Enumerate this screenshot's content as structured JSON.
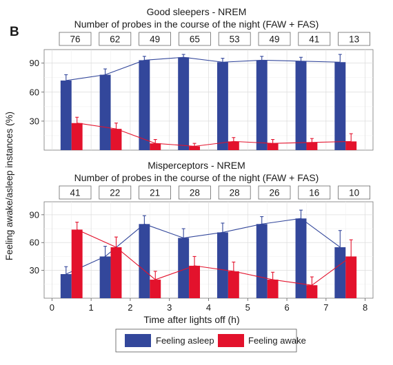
{
  "panel_label": "B",
  "y_axis_label": "Feeling awake/asleep instances (%)",
  "x_axis_label": "Time after lights off (h)",
  "colors": {
    "asleep": "#33479b",
    "awake": "#e3122c"
  },
  "legend": {
    "asleep": "Feeling asleep",
    "awake": "Feeling awake"
  },
  "chart_data": [
    {
      "type": "bar",
      "title": "Good sleepers - NREM",
      "subtitle": "Number of probes in the course of the night (FAW + FAS)",
      "probe_counts": [
        "76",
        "62",
        "49",
        "65",
        "53",
        "49",
        "41",
        "13"
      ],
      "x": [
        0.5,
        1.5,
        2.5,
        3.5,
        4.5,
        5.5,
        6.5,
        7.5
      ],
      "ylim": [
        0,
        104
      ],
      "xlim": [
        0,
        8
      ],
      "yticks": [
        30,
        60,
        90
      ],
      "grid": true,
      "series": [
        {
          "name": "Feeling asleep",
          "values": [
            72,
            78,
            93,
            96,
            91,
            93,
            92,
            91
          ],
          "errors": [
            6,
            6,
            4,
            3,
            4,
            4,
            4,
            8
          ]
        },
        {
          "name": "Feeling awake",
          "values": [
            28,
            22,
            7,
            4,
            9,
            7,
            8,
            9
          ],
          "errors": [
            6,
            6,
            4,
            3,
            4,
            4,
            4,
            8
          ]
        }
      ]
    },
    {
      "type": "bar",
      "title": "Misperceptors - NREM",
      "subtitle": "Number of probes in the course of the night (FAW + FAS)",
      "probe_counts": [
        "41",
        "22",
        "21",
        "28",
        "28",
        "26",
        "16",
        "10"
      ],
      "x": [
        0.5,
        1.5,
        2.5,
        3.5,
        4.5,
        5.5,
        6.5,
        7.5
      ],
      "ylim": [
        0,
        104
      ],
      "xlim": [
        0,
        8
      ],
      "yticks": [
        30,
        60,
        90
      ],
      "xticks": [
        0,
        1,
        2,
        3,
        4,
        5,
        6,
        7,
        8
      ],
      "grid": true,
      "series": [
        {
          "name": "Feeling asleep",
          "values": [
            26,
            45,
            80,
            65,
            71,
            80,
            86,
            55
          ],
          "errors": [
            8,
            11,
            9,
            10,
            10,
            8,
            9,
            18
          ]
        },
        {
          "name": "Feeling awake",
          "values": [
            74,
            55,
            20,
            35,
            29,
            20,
            14,
            45
          ],
          "errors": [
            8,
            11,
            9,
            10,
            10,
            8,
            9,
            18
          ]
        }
      ]
    }
  ]
}
